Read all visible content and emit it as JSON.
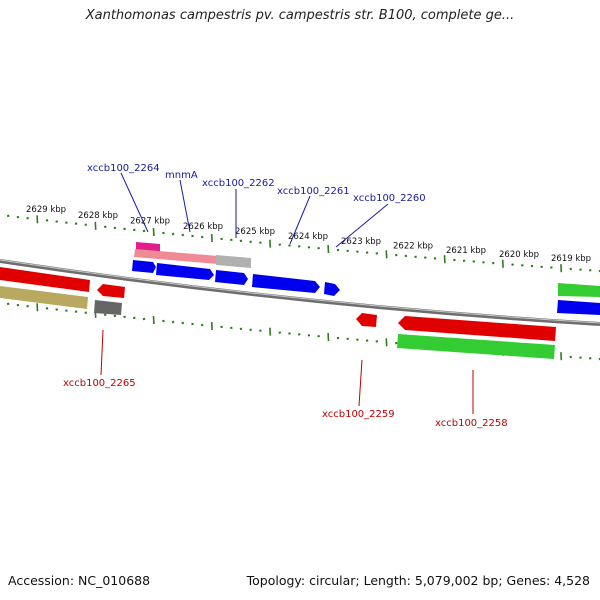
{
  "title": "Xanthomonas campestris pv. campestris str. B100, complete ge...",
  "footer": {
    "accession": "Accession: NC_010688",
    "summary": "Topology: circular; Length: 5,079,002 bp; Genes: 4,528"
  },
  "colors": {
    "backbone": "#7a7a7a",
    "tick": "#2e7d1f",
    "label_blue": "#1a1aa0",
    "label_red": "#c00000",
    "gene_red": "#e00000",
    "gene_blue": "#0000ee",
    "gene_green": "#33cc33",
    "gene_olive": "#b8a860",
    "gene_gray": "#666666",
    "gene_pink": "#f08090",
    "gene_magenta": "#e0208a",
    "gene_lightgray": "#b0b0b0"
  },
  "scale_labels": [
    "2629 kbp",
    "2628 kbp",
    "2627 kbp",
    "2626 kbp",
    "2625 kbp",
    "2624 kbp",
    "2623 kbp",
    "2622 kbp",
    "2621 kbp",
    "2620 kbp",
    "2619 kbp"
  ],
  "gene_labels_top": [
    "xccb100_2264",
    "mnmA",
    "xccb100_2262",
    "xccb100_2261",
    "xccb100_2260"
  ],
  "gene_labels_bottom": [
    "xccb100_2265",
    "xccb100_2259",
    "xccb100_2258"
  ]
}
